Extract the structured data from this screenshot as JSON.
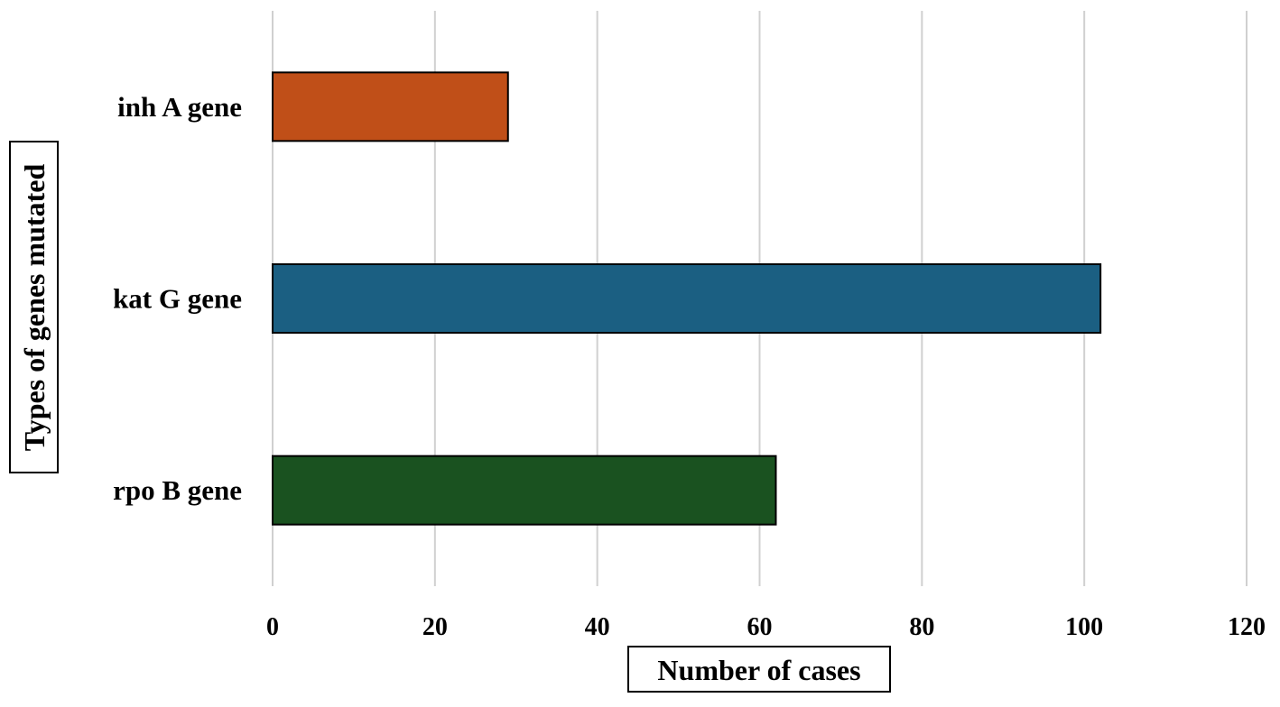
{
  "chart_data": {
    "type": "bar",
    "orientation": "horizontal",
    "categories": [
      "inh A gene",
      "kat G gene",
      "rpo B gene"
    ],
    "values": [
      29,
      102,
      62
    ],
    "colors": [
      "#c04f18",
      "#1b5f82",
      "#1a5220"
    ],
    "title": "",
    "xlabel": "Number of cases",
    "ylabel": "Types of genes mutated",
    "xlim": [
      0,
      120
    ],
    "xticks": [
      0,
      20,
      40,
      60,
      80,
      100,
      120
    ],
    "grid": "vertical",
    "legend": "none"
  }
}
